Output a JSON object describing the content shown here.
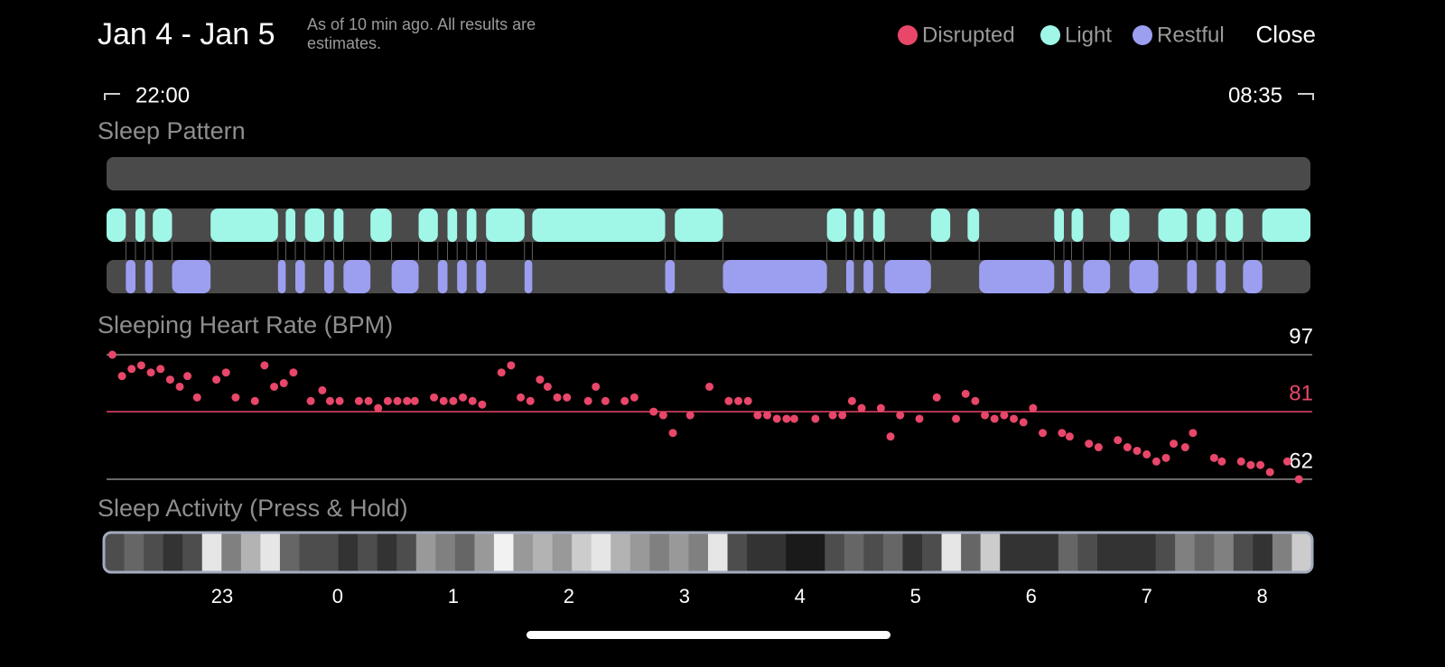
{
  "header": {
    "title": "Jan 4 - Jan 5",
    "subtitle": "As of 10 min ago. All results are estimates."
  },
  "close_button": "Close",
  "time_range": {
    "start": "22:00",
    "end": "08:35"
  },
  "chart_data": [
    {
      "type": "timeline",
      "title": "Sleep Pattern",
      "xlim": [
        0,
        625
      ],
      "series": [
        {
          "name": "Disrupted",
          "color": "#e8476a",
          "segments": []
        },
        {
          "name": "Light",
          "color": "#a0f7e8",
          "segments": [
            [
              0,
              10
            ],
            [
              15,
              20
            ],
            [
              24,
              34
            ],
            [
              54,
              89
            ],
            [
              93,
              98
            ],
            [
              103,
              113
            ],
            [
              118,
              123
            ],
            [
              137,
              148
            ],
            [
              162,
              172
            ],
            [
              177,
              182
            ],
            [
              187,
              192
            ],
            [
              197,
              217
            ],
            [
              221,
              290
            ],
            [
              295,
              320
            ],
            [
              374,
              384
            ],
            [
              388,
              393
            ],
            [
              398,
              404
            ],
            [
              428,
              438
            ],
            [
              447,
              453
            ],
            [
              492,
              497
            ],
            [
              501,
              507
            ],
            [
              521,
              531
            ],
            [
              546,
              561
            ],
            [
              566,
              576
            ],
            [
              581,
              590
            ],
            [
              600,
              625
            ]
          ]
        },
        {
          "name": "Restful",
          "color": "#9c9ff0",
          "segments": [
            [
              10,
              15
            ],
            [
              20,
              24
            ],
            [
              34,
              54
            ],
            [
              89,
              93
            ],
            [
              98,
              103
            ],
            [
              113,
              118
            ],
            [
              123,
              137
            ],
            [
              148,
              162
            ],
            [
              172,
              177
            ],
            [
              182,
              187
            ],
            [
              192,
              197
            ],
            [
              217,
              221
            ],
            [
              290,
              295
            ],
            [
              320,
              374
            ],
            [
              384,
              388
            ],
            [
              393,
              398
            ],
            [
              404,
              428
            ],
            [
              453,
              492
            ],
            [
              497,
              501
            ],
            [
              507,
              521
            ],
            [
              531,
              546
            ],
            [
              561,
              566
            ],
            [
              576,
              581
            ],
            [
              590,
              600
            ]
          ]
        }
      ]
    },
    {
      "type": "scatter",
      "title": "Sleeping Heart Rate (BPM)",
      "xlim": [
        0,
        625
      ],
      "ylim": [
        62,
        97
      ],
      "yticks": [
        62,
        97
      ],
      "average": 81,
      "average_color": "#e8476a",
      "color": "#e8476a",
      "x": [
        3,
        8,
        13,
        18,
        23,
        28,
        33,
        38,
        42,
        47,
        57,
        62,
        67,
        77,
        82,
        87,
        92,
        97,
        106,
        112,
        116,
        121,
        131,
        136,
        141,
        146,
        151,
        156,
        160,
        170,
        175,
        180,
        185,
        190,
        195,
        205,
        210,
        215,
        220,
        225,
        229,
        234,
        239,
        250,
        254,
        259,
        269,
        274,
        284,
        289,
        294,
        303,
        313,
        323,
        328,
        333,
        338,
        343,
        348,
        353,
        357,
        368,
        377,
        382,
        387,
        392,
        402,
        407,
        412,
        422,
        431,
        441,
        446,
        451,
        456,
        461,
        466,
        471,
        476,
        481,
        486,
        496,
        500,
        510,
        515,
        525,
        530,
        535,
        540,
        545,
        550,
        554,
        560,
        564,
        575,
        579,
        589,
        594,
        599,
        604,
        613,
        619
      ],
      "values": [
        97,
        91,
        93,
        94,
        92,
        93,
        90,
        88,
        91,
        85,
        90,
        92,
        85,
        84,
        94,
        88,
        89,
        92,
        84,
        87,
        84,
        84,
        84,
        84,
        82,
        84,
        84,
        84,
        84,
        85,
        84,
        84,
        85,
        84,
        83,
        92,
        94,
        85,
        84,
        90,
        88,
        85,
        85,
        84,
        88,
        84,
        84,
        85,
        81,
        80,
        75,
        80,
        88,
        84,
        84,
        84,
        80,
        80,
        79,
        79,
        79,
        79,
        80,
        80,
        84,
        82,
        82,
        74,
        80,
        79,
        85,
        79,
        86,
        84,
        80,
        79,
        80,
        79,
        78,
        82,
        75,
        75,
        74,
        72,
        71,
        73,
        71,
        70,
        69,
        67,
        68,
        72,
        71,
        75,
        68,
        67,
        67,
        66,
        66,
        64,
        67,
        62
      ]
    },
    {
      "type": "heatmap",
      "title": "Sleep Activity (Press & Hold)",
      "xlim": [
        0,
        625
      ],
      "xticks": [
        {
          "value": 60,
          "label": "23"
        },
        {
          "value": 120,
          "label": "0"
        },
        {
          "value": 180,
          "label": "1"
        },
        {
          "value": 240,
          "label": "2"
        },
        {
          "value": 300,
          "label": "3"
        },
        {
          "value": 360,
          "label": "4"
        },
        {
          "value": 420,
          "label": "5"
        },
        {
          "value": 480,
          "label": "6"
        },
        {
          "value": 540,
          "label": "7"
        },
        {
          "value": 600,
          "label": "8"
        }
      ],
      "values": [
        0.3,
        0.4,
        0.3,
        0.2,
        0.3,
        0.9,
        0.5,
        0.7,
        0.9,
        0.4,
        0.3,
        0.3,
        0.2,
        0.3,
        0.2,
        0.3,
        0.6,
        0.5,
        0.4,
        0.6,
        0.95,
        0.6,
        0.7,
        0.6,
        0.8,
        0.9,
        0.7,
        0.6,
        0.5,
        0.6,
        0.5,
        0.9,
        0.3,
        0.2,
        0.2,
        0.1,
        0.1,
        0.3,
        0.4,
        0.3,
        0.4,
        0.2,
        0.3,
        0.9,
        0.4,
        0.8,
        0.2,
        0.2,
        0.2,
        0.4,
        0.3,
        0.2,
        0.2,
        0.2,
        0.3,
        0.5,
        0.4,
        0.5,
        0.3,
        0.2,
        0.5,
        0.8
      ]
    }
  ]
}
